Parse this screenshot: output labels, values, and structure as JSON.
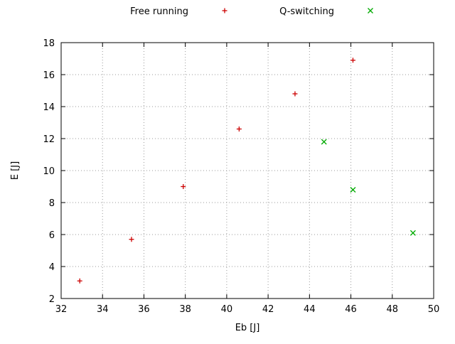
{
  "chart_data": {
    "type": "scatter",
    "title": "",
    "xlabel": "Eb [J]",
    "ylabel": "E [J]",
    "xlim": [
      32,
      50
    ],
    "ylim": [
      2,
      18
    ],
    "xticks": [
      32,
      34,
      36,
      38,
      40,
      42,
      44,
      46,
      48,
      50
    ],
    "yticks": [
      2,
      4,
      6,
      8,
      10,
      12,
      14,
      16,
      18
    ],
    "grid": true,
    "grid_style": "dotted",
    "legend_position": "top-center",
    "series": [
      {
        "name": "Free running",
        "marker": "plus",
        "color": "#cc0000",
        "points": [
          [
            32.9,
            3.1
          ],
          [
            35.4,
            5.7
          ],
          [
            37.9,
            9.0
          ],
          [
            40.6,
            12.6
          ],
          [
            43.3,
            14.8
          ],
          [
            46.1,
            16.9
          ]
        ]
      },
      {
        "name": "Q-switching",
        "marker": "cross",
        "color": "#00aa00",
        "points": [
          [
            44.7,
            11.8
          ],
          [
            46.1,
            8.8
          ],
          [
            49.0,
            6.1
          ]
        ]
      }
    ]
  }
}
